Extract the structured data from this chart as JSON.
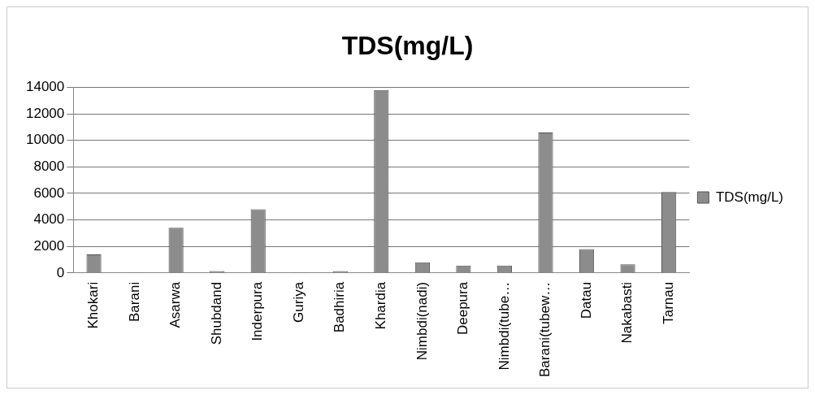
{
  "chart_data": {
    "type": "bar",
    "title": "TDS(mg/L)",
    "categories": [
      "Khokari",
      "Barani",
      "Asarwa",
      "Shubdand",
      "Inderpura",
      "Guriya",
      "Badhiria",
      "Khardia",
      "Nimbdi(nadi)",
      "Deepura",
      "Nimbdi(tube…",
      "Barani(tubew…",
      "Datau",
      "Nakabasti",
      "Tarnau"
    ],
    "series": [
      {
        "name": "TDS(mg/L)",
        "color": "#8c8c8c",
        "values": [
          1400,
          50,
          3400,
          150,
          4800,
          50,
          150,
          13800,
          800,
          550,
          550,
          10600,
          1800,
          650,
          6100
        ]
      }
    ],
    "ylim": [
      0,
      14000
    ],
    "yticks": [
      0,
      2000,
      4000,
      6000,
      8000,
      10000,
      12000,
      14000
    ],
    "grid": "y",
    "legend": "right"
  }
}
